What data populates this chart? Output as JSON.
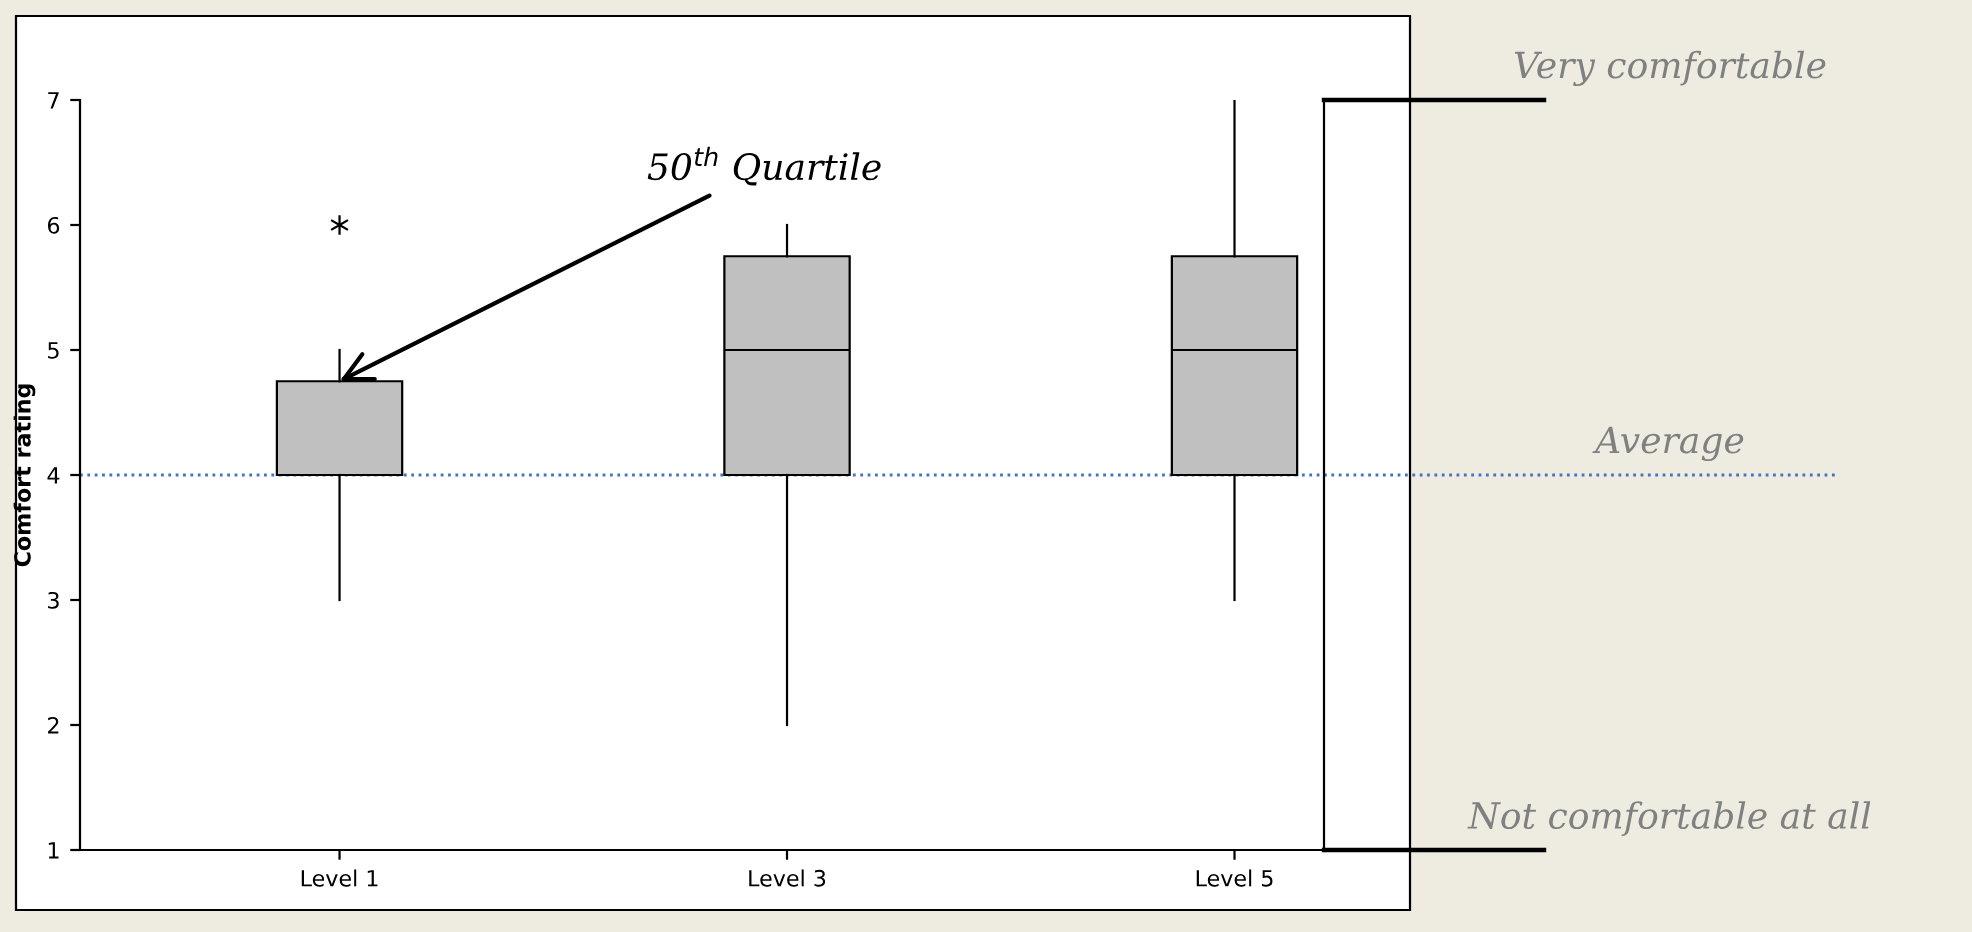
{
  "chart_data": {
    "type": "box",
    "ylabel": "Comfort rating",
    "categories": [
      "Level 1",
      "Level 3",
      "Level 5"
    ],
    "boxes": [
      {
        "low": 3,
        "q1": 4,
        "median": 4,
        "q3": 4.75,
        "high": 5,
        "outliers": [
          6
        ]
      },
      {
        "low": 2,
        "q1": 4,
        "median": 5,
        "q3": 5.75,
        "high": 6
      },
      {
        "low": 3,
        "q1": 4,
        "median": 5,
        "q3": 5.75,
        "high": 7
      }
    ],
    "color": "#c0c0c0",
    "ylim": [
      1,
      7
    ],
    "yticks": [
      1,
      2,
      3,
      4,
      5,
      6,
      7
    ],
    "grid": false,
    "ref_lines": [
      {
        "axis": "y",
        "value": 7,
        "label": "Very comfortable",
        "color": "#000000",
        "line_style": "solid"
      },
      {
        "axis": "y",
        "value": 4,
        "label": "Average",
        "color": "#4472c4",
        "line_style": "dotted"
      },
      {
        "axis": "y",
        "value": 1,
        "label": "Not comfortable at all",
        "color": "#000000",
        "line_style": "solid"
      }
    ],
    "annotations": [
      {
        "text": "50$^{th}$ Quartile",
        "x": "Level 1",
        "y": 4.75
      }
    ]
  }
}
